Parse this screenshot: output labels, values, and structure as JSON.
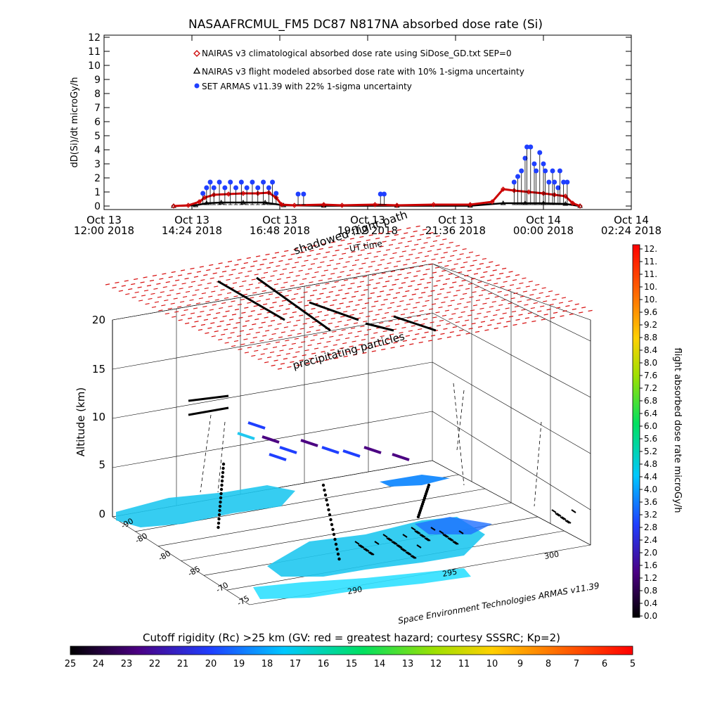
{
  "chart_data": [
    {
      "type": "scatter",
      "title": "NASAAFRCMUL_FM5 DC87 N817NA absorbed dose rate (Si)",
      "ylabel": "dD(Si)/dt microGy/h",
      "ylim": [
        0,
        12
      ],
      "yticks": [
        "0",
        "1",
        "2",
        "3",
        "4",
        "5",
        "6",
        "7",
        "8",
        "9",
        "10",
        "11",
        "12"
      ],
      "xlim_hours": [
        0,
        14.4
      ],
      "xticks": [
        {
          "l1": "Oct 13",
          "l2": "12:00 2018",
          "h": 0
        },
        {
          "l1": "Oct 13",
          "l2": "14:24 2018",
          "h": 2.4
        },
        {
          "l1": "Oct 13",
          "l2": "16:48 2018",
          "h": 4.8
        },
        {
          "l1": "Oct 13",
          "l2": "19:12 2018",
          "h": 7.2
        },
        {
          "l1": "Oct 13",
          "l2": "21:36 2018",
          "h": 9.6
        },
        {
          "l1": "Oct 14",
          "l2": "00:00 2018",
          "h": 12.0
        },
        {
          "l1": "Oct 14",
          "l2": "02:24 2018",
          "h": 14.4
        }
      ],
      "legend": [
        {
          "symbol": "diamond",
          "color": "#cc0000",
          "label": "NAIRAS v3 climatological absorbed dose rate using SiDose_GD.txt SEP=0"
        },
        {
          "symbol": "triangle",
          "color": "#000000",
          "label": "NAIRAS v3 flight modeled absorbed dose rate with 10% 1-sigma uncertainty"
        },
        {
          "symbol": "circle",
          "color": "#1f3fff",
          "label": "SET ARMAS v11.39 with 22% 1-sigma uncertainty"
        }
      ],
      "legend_position": "top-left",
      "series": [
        {
          "name": "NAIRAS v3 climatological absorbed dose rate using SiDose_GD.txt SEP=0",
          "color": "#cc0000",
          "points": [
            [
              1.9,
              0.0
            ],
            [
              2.3,
              0.05
            ],
            [
              2.6,
              0.3
            ],
            [
              2.75,
              0.6
            ],
            [
              3.0,
              0.8
            ],
            [
              3.4,
              0.85
            ],
            [
              3.8,
              0.9
            ],
            [
              4.2,
              0.9
            ],
            [
              4.5,
              0.95
            ],
            [
              4.7,
              0.6
            ],
            [
              4.85,
              0.1
            ],
            [
              5.2,
              0.05
            ],
            [
              6.0,
              0.1
            ],
            [
              6.5,
              0.05
            ],
            [
              7.4,
              0.1
            ],
            [
              8.0,
              0.05
            ],
            [
              9.0,
              0.1
            ],
            [
              10.0,
              0.1
            ],
            [
              10.6,
              0.3
            ],
            [
              10.9,
              1.2
            ],
            [
              11.2,
              1.1
            ],
            [
              11.6,
              1.0
            ],
            [
              12.0,
              0.9
            ],
            [
              12.3,
              0.8
            ],
            [
              12.6,
              0.7
            ],
            [
              12.8,
              0.2
            ],
            [
              13.0,
              0.0
            ]
          ]
        },
        {
          "name": "NAIRAS v3 flight modeled absorbed dose rate with 10% 1-sigma uncertainty",
          "color": "#000000",
          "points": [
            [
              1.9,
              0.0
            ],
            [
              2.5,
              0.05
            ],
            [
              2.8,
              0.2
            ],
            [
              3.2,
              0.25
            ],
            [
              3.8,
              0.25
            ],
            [
              4.4,
              0.25
            ],
            [
              4.9,
              0.05
            ],
            [
              6.0,
              0.02
            ],
            [
              8.0,
              0.02
            ],
            [
              10.0,
              0.02
            ],
            [
              10.9,
              0.2
            ],
            [
              11.5,
              0.2
            ],
            [
              12.0,
              0.2
            ],
            [
              12.6,
              0.15
            ],
            [
              13.0,
              0.0
            ]
          ]
        },
        {
          "name": "SET ARMAS v11.39 with 22% 1-sigma uncertainty",
          "color": "#1f3fff",
          "points": [
            [
              2.7,
              0.9
            ],
            [
              2.8,
              1.3
            ],
            [
              2.9,
              1.7
            ],
            [
              3.0,
              1.3
            ],
            [
              3.15,
              1.7
            ],
            [
              3.3,
              1.3
            ],
            [
              3.45,
              1.7
            ],
            [
              3.6,
              1.3
            ],
            [
              3.75,
              1.7
            ],
            [
              3.9,
              1.3
            ],
            [
              4.05,
              1.7
            ],
            [
              4.2,
              1.3
            ],
            [
              4.35,
              1.7
            ],
            [
              4.5,
              1.3
            ],
            [
              4.6,
              1.7
            ],
            [
              4.7,
              0.9
            ],
            [
              5.3,
              0.85
            ],
            [
              5.45,
              0.85
            ],
            [
              7.55,
              0.85
            ],
            [
              7.65,
              0.85
            ],
            [
              11.2,
              1.7
            ],
            [
              11.3,
              2.1
            ],
            [
              11.4,
              2.5
            ],
            [
              11.5,
              3.4
            ],
            [
              11.55,
              4.2
            ],
            [
              11.65,
              4.2
            ],
            [
              11.75,
              3.0
            ],
            [
              11.8,
              2.5
            ],
            [
              11.9,
              3.8
            ],
            [
              12.0,
              3.0
            ],
            [
              12.05,
              2.5
            ],
            [
              12.15,
              1.7
            ],
            [
              12.25,
              2.5
            ],
            [
              12.3,
              1.7
            ],
            [
              12.4,
              1.3
            ],
            [
              12.45,
              2.5
            ],
            [
              12.55,
              1.7
            ],
            [
              12.65,
              1.7
            ]
          ]
        }
      ]
    },
    {
      "type": "scatter",
      "subtitle": "Cutoff rigidity (Rc) >25 km (GV: red = greatest hazard; courtesy SSSRC; Kp=2)",
      "zlabel": "Altitude (km)",
      "zticks": [
        "0",
        "5",
        "10",
        "15",
        "20"
      ],
      "axis_label_shadowed": "shadowed flight path",
      "axis_label_ut": "UT time",
      "layer_label": "precipitating particles",
      "lat_ticks": [
        "-90",
        "-85",
        "-80",
        "-75",
        "-70",
        "-65"
      ],
      "lon_ticks": [
        "-80",
        "-85",
        "-70",
        "-75"
      ],
      "lon_ticks_right": [
        "290",
        "295",
        "300"
      ],
      "credit": "Space Environment Technologies ARMAS v11.39",
      "right_colorbar": {
        "label": "flight absorbed dose rate microGy/h",
        "ticks": [
          "0.0",
          "0.4",
          "0.8",
          "1.2",
          "1.6",
          "2.0",
          "2.4",
          "2.8",
          "3.2",
          "3.6",
          "4.0",
          "4.4",
          "4.8",
          "5.2",
          "5.6",
          "6.0",
          "6.4",
          "6.8",
          "7.2",
          "7.6",
          "8.0",
          "8.4",
          "8.8",
          "9.2",
          "9.6",
          "10.",
          "10.",
          "11.",
          "11.",
          "12."
        ]
      },
      "bottom_colorbar": {
        "ticks": [
          "25",
          "24",
          "23",
          "22",
          "21",
          "20",
          "19",
          "18",
          "17",
          "16",
          "15",
          "14",
          "13",
          "12",
          "11",
          "10",
          "9",
          "8",
          "7",
          "6",
          "5"
        ]
      }
    }
  ]
}
